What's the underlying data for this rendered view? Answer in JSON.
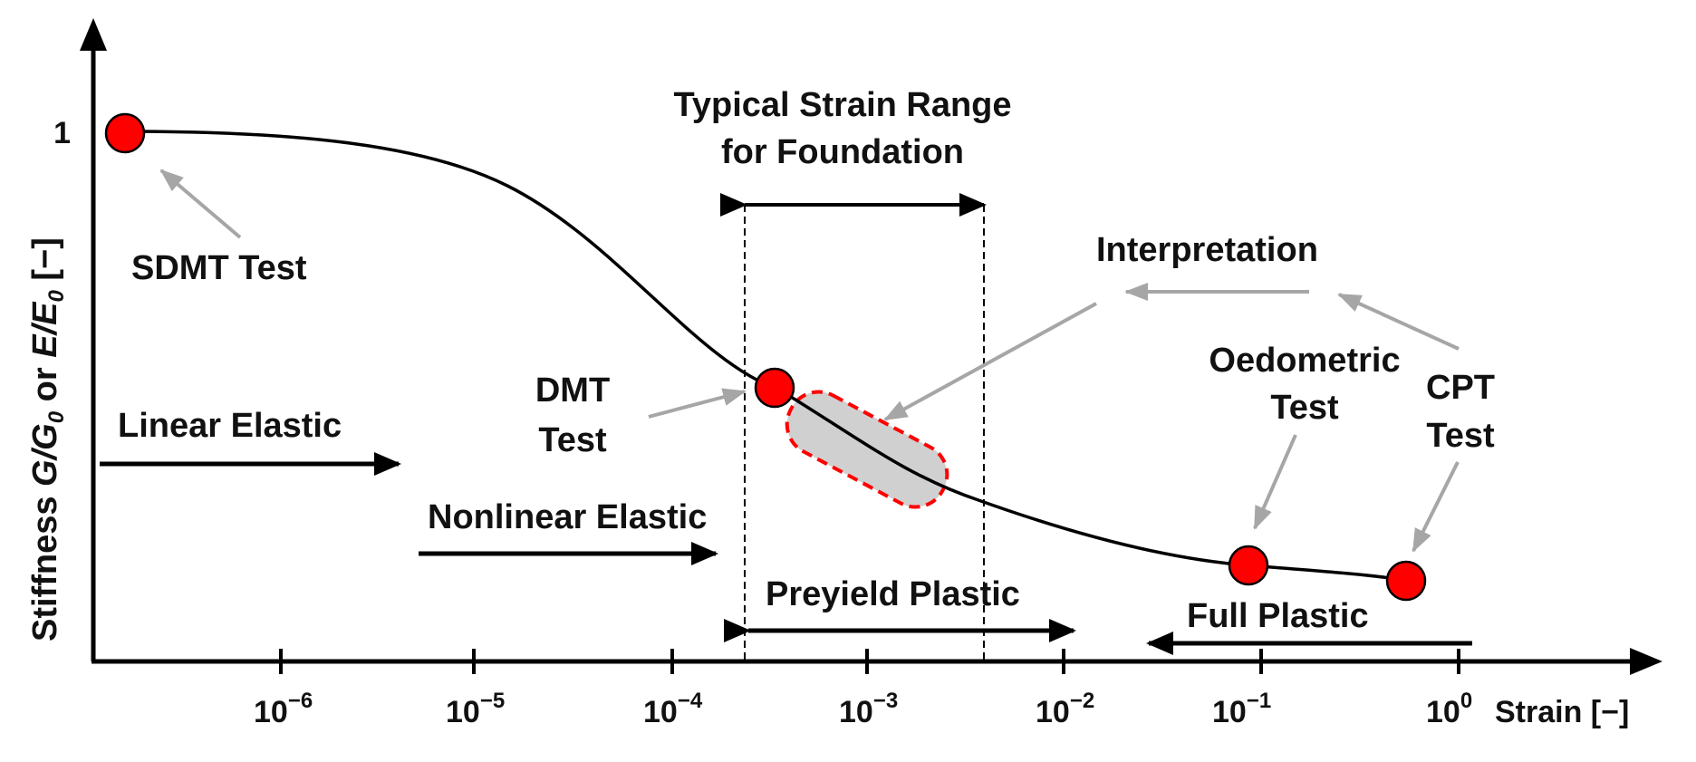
{
  "axes": {
    "y_label_prefix": "Stiffness ",
    "y_label_G": "G",
    "y_label_slash1": "/",
    "y_label_G0": "G",
    "y_label_sub0a": "0",
    "y_label_or": " or ",
    "y_label_E": "E",
    "y_label_slash2": "/",
    "y_label_E0": "E",
    "y_label_sub0b": "0",
    "y_label_unit": " [−]",
    "y_tick_1": "1",
    "x_label": "Strain [−]",
    "x_ticks": [
      {
        "base": "10",
        "exp": "−6"
      },
      {
        "base": "10",
        "exp": "−5"
      },
      {
        "base": "10",
        "exp": "−4"
      },
      {
        "base": "10",
        "exp": "−3"
      },
      {
        "base": "10",
        "exp": "−2"
      },
      {
        "base": "10",
        "exp": "−1"
      },
      {
        "base": "10",
        "exp": "0"
      }
    ]
  },
  "labels": {
    "typical_line1": "Typical Strain Range",
    "typical_line2": "for Foundation",
    "sdmt": "SDMT Test",
    "interpretation": "Interpretation",
    "oedo_line1": "Oedometric",
    "oedo_line2": "Test",
    "cpt_line1": "CPT",
    "cpt_line2": "Test",
    "dmt_line1": "DMT",
    "dmt_line2": "Test",
    "linear_elastic": "Linear Elastic",
    "nonlinear_elastic": "Nonlinear Elastic",
    "preyield_plastic": "Preyield Plastic",
    "full_plastic": "Full Plastic"
  },
  "colors": {
    "curve": "#000000",
    "marker_fill": "#ff0000",
    "marker_stroke": "#000000",
    "annotation_arrow": "#a6a6a6",
    "highlight_fill": "#d0d0d0",
    "highlight_stroke": "#ff0000"
  }
}
